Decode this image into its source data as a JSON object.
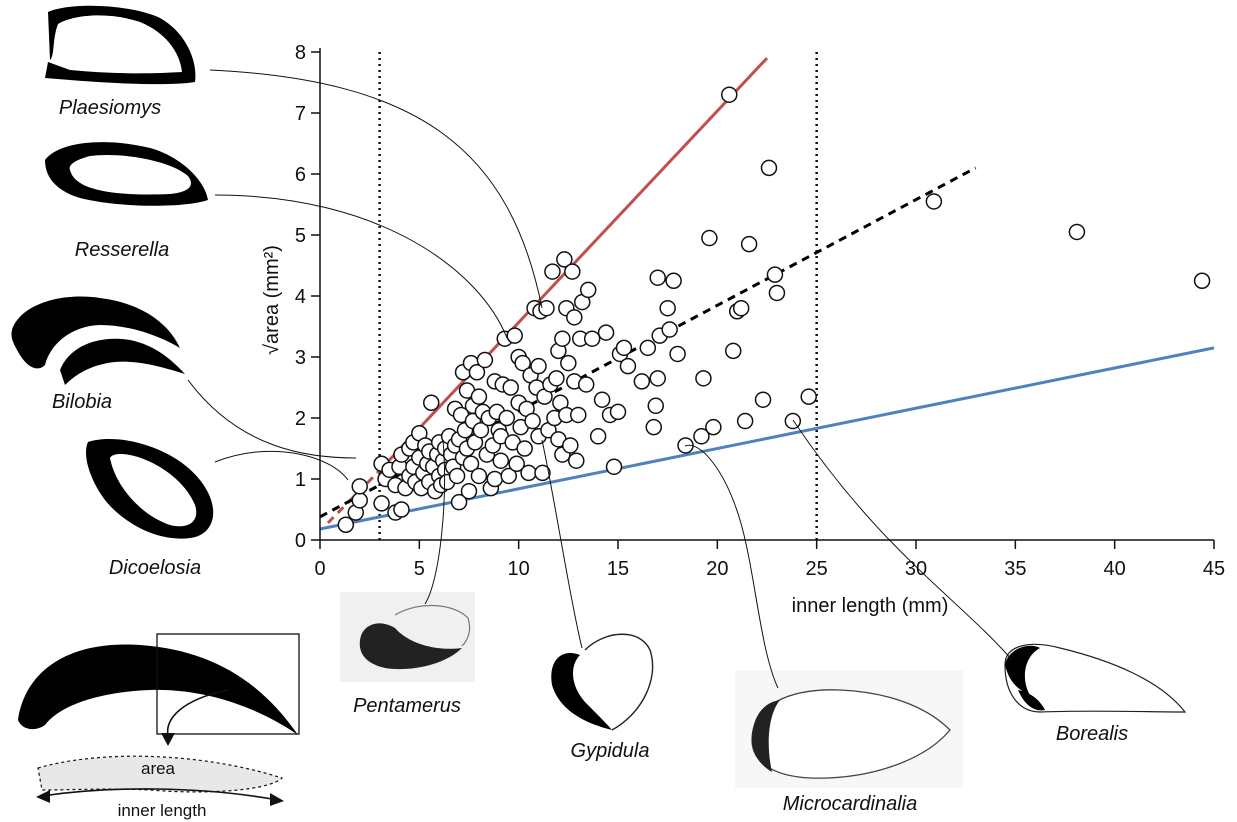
{
  "chart_data": {
    "type": "scatter",
    "xlabel": "inner length (mm)",
    "ylabel": "area (mm²)",
    "ylabel_prefix": "√",
    "xlim": [
      0,
      45
    ],
    "ylim": [
      0,
      8
    ],
    "xticks": [
      0,
      5,
      10,
      15,
      20,
      25,
      30,
      35,
      40,
      45
    ],
    "yticks": [
      0,
      1,
      2,
      3,
      4,
      5,
      6,
      7,
      8
    ],
    "grid": false,
    "vertical_reference_lines": [
      3,
      25
    ],
    "lines": [
      {
        "color": "#c0504d",
        "style": "solid",
        "x0": 3,
        "y0": 1.14,
        "x1": 22.5,
        "y1": 7.9
      },
      {
        "color": "#c0504d",
        "style": "dashed",
        "x0": 0.4,
        "y0": 0.28,
        "x1": 3,
        "y1": 1.14
      },
      {
        "color": "#000000",
        "style": "dashed",
        "x0": 0,
        "y0": 0.38,
        "x1": 33,
        "y1": 6.1
      },
      {
        "color": "#4f81bd",
        "style": "solid",
        "x0": 0,
        "y0": 0.18,
        "x1": 45,
        "y1": 3.15
      }
    ],
    "points": [
      [
        1.3,
        0.25
      ],
      [
        1.8,
        0.45
      ],
      [
        2.0,
        0.65
      ],
      [
        2.0,
        0.88
      ],
      [
        3.1,
        0.6
      ],
      [
        3.8,
        0.45
      ],
      [
        4.1,
        0.5
      ],
      [
        3.3,
        1.0
      ],
      [
        3.1,
        1.25
      ],
      [
        3.5,
        1.15
      ],
      [
        3.8,
        0.9
      ],
      [
        4.0,
        1.2
      ],
      [
        4.1,
        1.4
      ],
      [
        4.3,
        0.85
      ],
      [
        4.5,
        1.05
      ],
      [
        4.5,
        1.5
      ],
      [
        4.7,
        1.2
      ],
      [
        4.7,
        1.6
      ],
      [
        4.8,
        0.95
      ],
      [
        5.0,
        1.35
      ],
      [
        5.0,
        1.75
      ],
      [
        5.1,
        0.85
      ],
      [
        5.2,
        1.1
      ],
      [
        5.3,
        1.55
      ],
      [
        5.4,
        1.25
      ],
      [
        5.5,
        0.95
      ],
      [
        5.5,
        1.45
      ],
      [
        5.6,
        2.25
      ],
      [
        5.7,
        1.2
      ],
      [
        5.8,
        0.8
      ],
      [
        5.9,
        1.4
      ],
      [
        6.0,
        1.05
      ],
      [
        6.0,
        1.6
      ],
      [
        6.1,
        0.9
      ],
      [
        6.2,
        1.3
      ],
      [
        6.3,
        1.15
      ],
      [
        6.3,
        1.5
      ],
      [
        6.4,
        0.95
      ],
      [
        6.5,
        1.7
      ],
      [
        6.6,
        1.4
      ],
      [
        6.7,
        1.2
      ],
      [
        6.8,
        1.55
      ],
      [
        6.8,
        2.15
      ],
      [
        6.9,
        1.05
      ],
      [
        7.0,
        1.65
      ],
      [
        7.0,
        0.62
      ],
      [
        7.1,
        2.05
      ],
      [
        7.2,
        1.35
      ],
      [
        7.2,
        2.75
      ],
      [
        7.3,
        1.8
      ],
      [
        7.4,
        1.5
      ],
      [
        7.4,
        2.45
      ],
      [
        7.5,
        0.8
      ],
      [
        7.6,
        1.25
      ],
      [
        7.6,
        2.9
      ],
      [
        7.7,
        1.95
      ],
      [
        7.7,
        2.2
      ],
      [
        7.8,
        1.6
      ],
      [
        7.9,
        2.75
      ],
      [
        8.0,
        1.05
      ],
      [
        8.0,
        2.35
      ],
      [
        8.1,
        1.8
      ],
      [
        8.2,
        2.1
      ],
      [
        8.3,
        2.95
      ],
      [
        8.4,
        1.4
      ],
      [
        8.5,
        2.0
      ],
      [
        8.6,
        0.85
      ],
      [
        8.7,
        1.55
      ],
      [
        8.8,
        2.6
      ],
      [
        8.8,
        1.0
      ],
      [
        8.9,
        2.1
      ],
      [
        9.0,
        1.8
      ],
      [
        9.1,
        1.3
      ],
      [
        9.1,
        1.7
      ],
      [
        9.2,
        2.55
      ],
      [
        9.3,
        3.3
      ],
      [
        9.4,
        2.0
      ],
      [
        9.5,
        1.05
      ],
      [
        9.6,
        2.5
      ],
      [
        9.7,
        1.6
      ],
      [
        9.8,
        3.35
      ],
      [
        9.9,
        1.25
      ],
      [
        10.0,
        2.25
      ],
      [
        10.0,
        3.0
      ],
      [
        10.1,
        1.85
      ],
      [
        10.2,
        2.9
      ],
      [
        10.3,
        1.5
      ],
      [
        10.4,
        2.15
      ],
      [
        10.5,
        1.1
      ],
      [
        10.6,
        2.7
      ],
      [
        10.7,
        1.95
      ],
      [
        10.8,
        3.8
      ],
      [
        10.9,
        2.5
      ],
      [
        11.0,
        1.7
      ],
      [
        11.0,
        2.85
      ],
      [
        11.1,
        3.75
      ],
      [
        11.2,
        1.1
      ],
      [
        11.3,
        2.35
      ],
      [
        11.4,
        3.8
      ],
      [
        11.5,
        1.8
      ],
      [
        11.6,
        2.55
      ],
      [
        11.7,
        4.4
      ],
      [
        11.8,
        2.0
      ],
      [
        11.9,
        2.65
      ],
      [
        12.0,
        1.65
      ],
      [
        12.0,
        3.1
      ],
      [
        12.1,
        2.25
      ],
      [
        12.2,
        1.4
      ],
      [
        12.2,
        3.3
      ],
      [
        12.3,
        4.6
      ],
      [
        12.4,
        2.05
      ],
      [
        12.4,
        3.8
      ],
      [
        12.5,
        2.9
      ],
      [
        12.6,
        1.55
      ],
      [
        12.7,
        4.4
      ],
      [
        12.8,
        3.65
      ],
      [
        12.8,
        2.6
      ],
      [
        12.9,
        1.3
      ],
      [
        13.0,
        2.05
      ],
      [
        13.1,
        3.3
      ],
      [
        13.2,
        3.9
      ],
      [
        13.4,
        2.55
      ],
      [
        13.5,
        4.1
      ],
      [
        13.7,
        3.3
      ],
      [
        14.0,
        1.7
      ],
      [
        14.2,
        2.3
      ],
      [
        14.4,
        3.4
      ],
      [
        14.6,
        2.05
      ],
      [
        14.8,
        1.2
      ],
      [
        15.0,
        2.1
      ],
      [
        15.1,
        3.05
      ],
      [
        15.3,
        3.15
      ],
      [
        15.5,
        2.85
      ],
      [
        16.2,
        2.6
      ],
      [
        16.5,
        3.15
      ],
      [
        16.8,
        1.85
      ],
      [
        16.9,
        2.2
      ],
      [
        17.0,
        2.65
      ],
      [
        17.0,
        4.3
      ],
      [
        17.1,
        3.35
      ],
      [
        17.5,
        3.8
      ],
      [
        17.6,
        3.45
      ],
      [
        17.8,
        4.25
      ],
      [
        18.0,
        3.05
      ],
      [
        18.4,
        1.55
      ],
      [
        19.2,
        1.7
      ],
      [
        19.3,
        2.65
      ],
      [
        19.6,
        4.95
      ],
      [
        19.8,
        1.85
      ],
      [
        20.6,
        7.3
      ],
      [
        20.8,
        3.1
      ],
      [
        21.0,
        3.75
      ],
      [
        21.2,
        3.8
      ],
      [
        21.4,
        1.95
      ],
      [
        21.6,
        4.85
      ],
      [
        22.3,
        2.3
      ],
      [
        22.6,
        6.1
      ],
      [
        22.9,
        4.35
      ],
      [
        23.0,
        4.05
      ],
      [
        23.8,
        1.95
      ],
      [
        24.6,
        2.35
      ],
      [
        30.9,
        5.55
      ],
      [
        38.1,
        5.05
      ],
      [
        44.4,
        4.25
      ]
    ]
  },
  "taxa": [
    {
      "name": "Plaesiomys"
    },
    {
      "name": "Resserella"
    },
    {
      "name": "Bilobia"
    },
    {
      "name": "Dicoelosia"
    },
    {
      "name": "Pentamerus"
    },
    {
      "name": "Gypidula"
    },
    {
      "name": "Microcardinalia"
    },
    {
      "name": "Borealis"
    }
  ],
  "legend": {
    "area_label": "area",
    "length_label": "inner length"
  },
  "colors": {
    "red_line": "#c0504d",
    "blue_line": "#4f81bd",
    "shell": "#000000",
    "area_fill": "#e8e8e8"
  }
}
